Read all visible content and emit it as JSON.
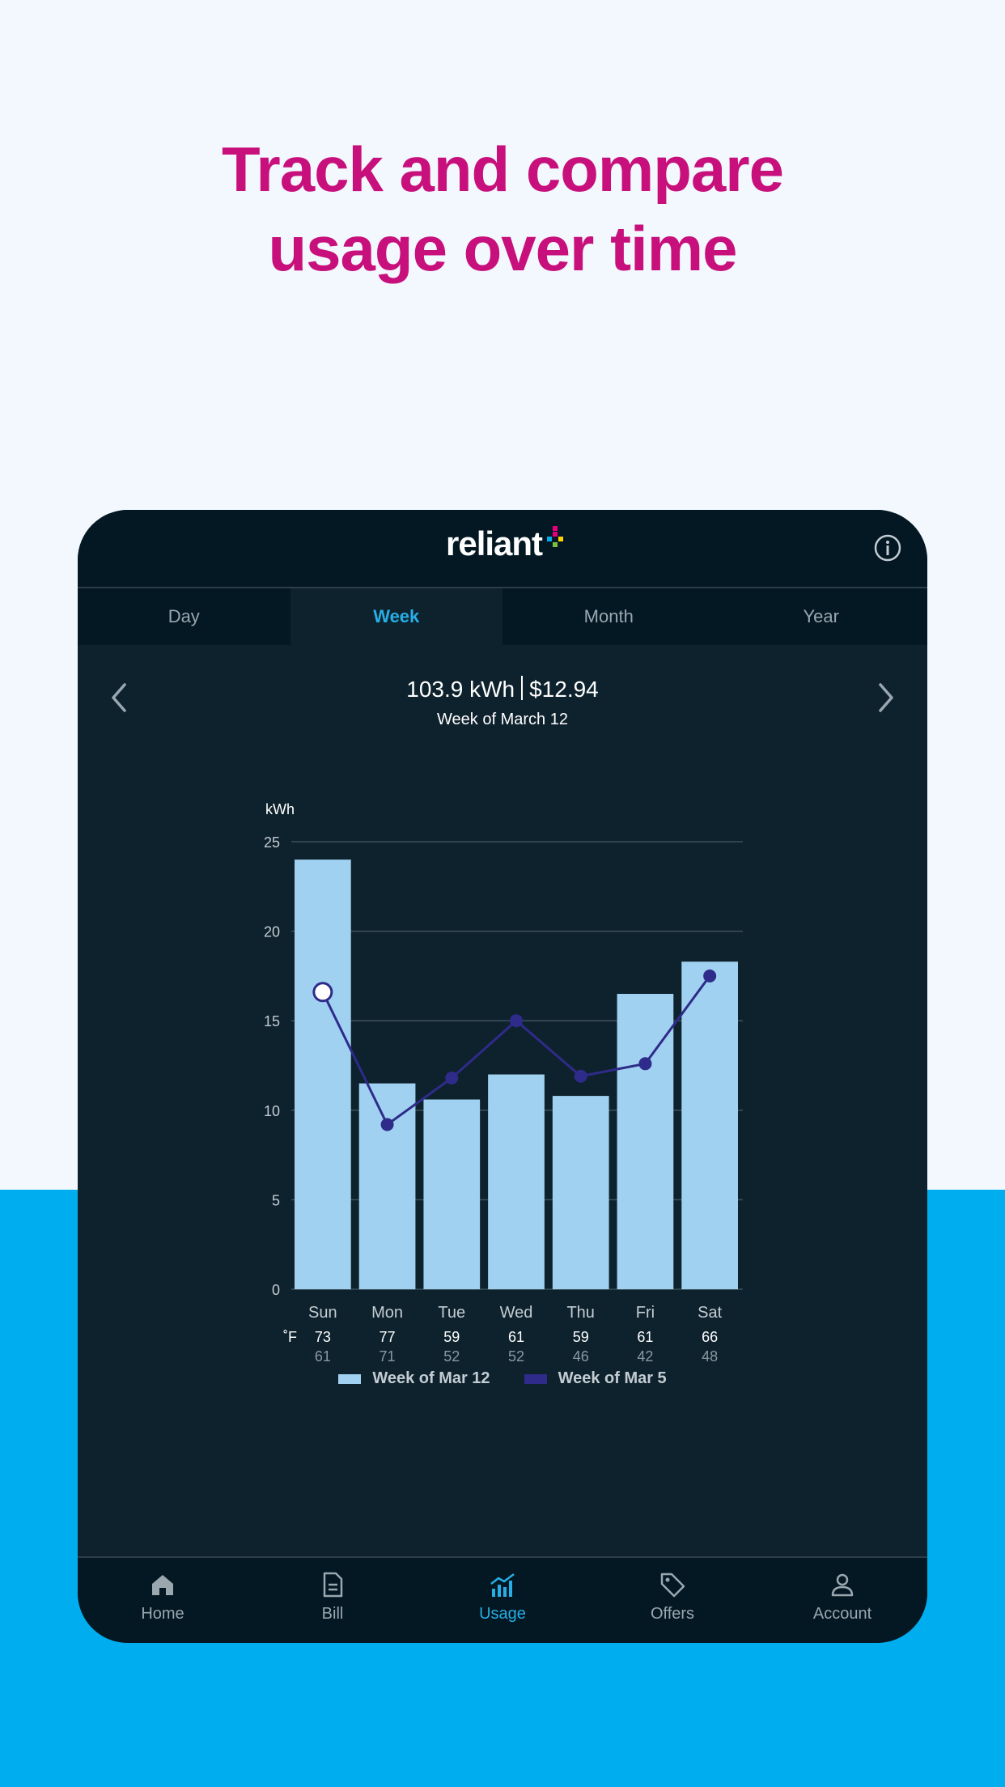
{
  "headline": "Track and compare usage over time",
  "app": {
    "logo_text": "reliant"
  },
  "tabs": [
    {
      "label": "Day",
      "active": false
    },
    {
      "label": "Week",
      "active": true
    },
    {
      "label": "Month",
      "active": false
    },
    {
      "label": "Year",
      "active": false
    }
  ],
  "summary": {
    "kwh": "103.9 kWh",
    "cost": "$12.94",
    "period": "Week of March 12"
  },
  "chart_data": {
    "type": "bar",
    "ylabel": "kWh",
    "ylim": [
      0,
      25
    ],
    "yticks": [
      0,
      5,
      10,
      15,
      20,
      25
    ],
    "grid": true,
    "categories": [
      "Sun",
      "Mon",
      "Tue",
      "Wed",
      "Thu",
      "Fri",
      "Sat"
    ],
    "series": [
      {
        "name": "Week of Mar 12",
        "type": "bar",
        "color": "#a0d1f0",
        "values": [
          24.0,
          11.5,
          10.6,
          12.0,
          10.8,
          16.5,
          18.3
        ]
      },
      {
        "name": "Week of Mar 5",
        "type": "line",
        "color": "#2e2b8a",
        "values": [
          16.6,
          9.2,
          11.8,
          15.0,
          11.9,
          12.6,
          17.5
        ]
      }
    ],
    "temperature_unit": "˚F",
    "temps_high": [
      73,
      77,
      59,
      61,
      59,
      61,
      66
    ],
    "temps_low": [
      61,
      71,
      52,
      52,
      46,
      42,
      48
    ],
    "legend_position": "bottom"
  },
  "bottom_nav": [
    {
      "label": "Home",
      "icon": "home-icon",
      "active": false
    },
    {
      "label": "Bill",
      "icon": "bill-icon",
      "active": false
    },
    {
      "label": "Usage",
      "icon": "usage-chart-icon",
      "active": true
    },
    {
      "label": "Offers",
      "icon": "tag-icon",
      "active": false
    },
    {
      "label": "Account",
      "icon": "person-icon",
      "active": false
    }
  ],
  "colors": {
    "headline": "#c8107c",
    "accent": "#27aee6",
    "bar": "#a0d1f0",
    "line": "#2e2b8a",
    "panel": "#0e222d",
    "sky": "#00aeef"
  }
}
